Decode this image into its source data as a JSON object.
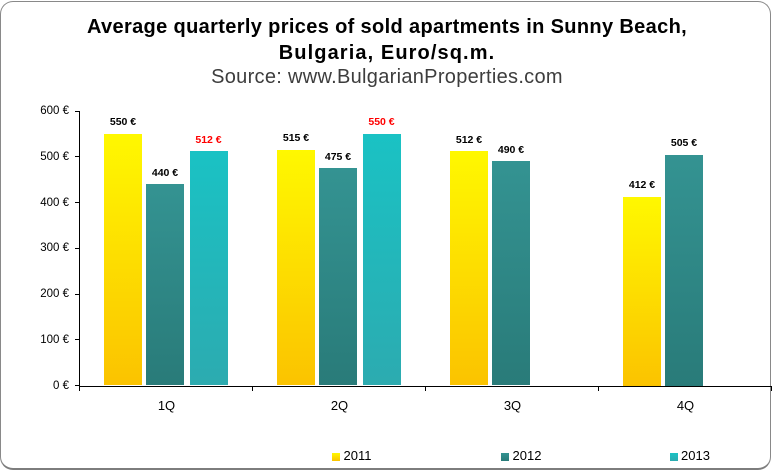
{
  "header": {
    "title_line1": "Average quarterly prices of sold apartments in Sunny Beach,",
    "title_line2": "Bulgaria, Euro/sq.m.",
    "source": "Source: www.BulgarianProperties.com"
  },
  "chart_data": {
    "type": "bar",
    "title": "Average quarterly prices of sold apartments in Sunny Beach, Bulgaria, Euro/sq.m.",
    "subtitle": "Source: www.BulgarianProperties.com",
    "categories": [
      "1Q",
      "2Q",
      "3Q",
      "4Q"
    ],
    "series": [
      {
        "name": "2011",
        "values": [
          550,
          515,
          512,
          412
        ],
        "label_color": "#000000",
        "gradient_top": "#fff800",
        "gradient_bottom": "#fbc300"
      },
      {
        "name": "2012",
        "values": [
          440,
          475,
          490,
          505
        ],
        "label_color": "#000000",
        "gradient_top": "#349392",
        "gradient_bottom": "#297b79"
      },
      {
        "name": "2013",
        "values": [
          512,
          550,
          null,
          null
        ],
        "label_color": "#ff0000",
        "gradient_top": "#1ac2c4",
        "gradient_bottom": "#2cabb0"
      }
    ],
    "data_labels": [
      [
        "550 €",
        "515 €",
        "512 €",
        "412 €"
      ],
      [
        "440 €",
        "475 €",
        "490 €",
        "505 €"
      ],
      [
        "512 €",
        "550 €",
        null,
        null
      ]
    ],
    "value_suffix": " €",
    "ylim": [
      0,
      600
    ],
    "y_tick_step": 100,
    "y_tick_labels": [
      "0 €",
      "100 €",
      "200 €",
      "300 €",
      "400 €",
      "500 €",
      "600 €"
    ],
    "grid": false,
    "xlabel": "",
    "ylabel": "",
    "legend_position": "bottom",
    "legend": [
      "2011",
      "2012",
      "2013"
    ]
  },
  "colors": {
    "axis": "#000000",
    "frame_border": "#898989",
    "background": "#ffffff",
    "title_text": "#000000",
    "source_text": "#3d3d3d",
    "data_label_default": "#000000",
    "data_label_2013": "#ff0000"
  }
}
